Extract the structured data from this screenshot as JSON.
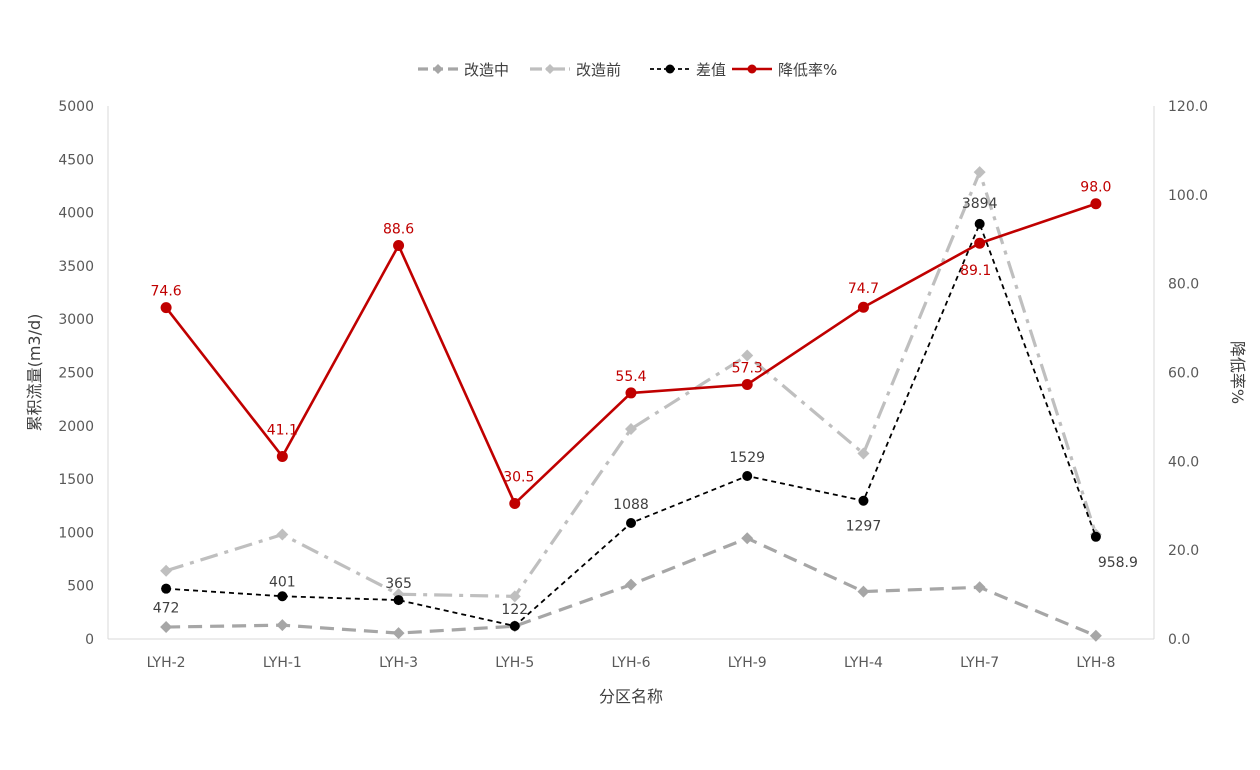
{
  "chart_data": {
    "type": "line",
    "categories": [
      "LYH-2",
      "LYH-1",
      "LYH-3",
      "LYH-5",
      "LYH-6",
      "LYH-9",
      "LYH-4",
      "LYH-7",
      "LYH-8"
    ],
    "xlabel": "分区名称",
    "ylabel": "累积流量(m3/d)",
    "y2label": "降低率%",
    "ylim": [
      0,
      5000
    ],
    "y2lim": [
      0,
      120
    ],
    "yticks": [
      "0",
      "500",
      "1000",
      "1500",
      "2000",
      "2500",
      "3000",
      "3500",
      "4000",
      "4500",
      "5000"
    ],
    "y2ticks": [
      "0.0",
      "20.0",
      "40.0",
      "60.0",
      "80.0",
      "100.0",
      "120.0"
    ],
    "grid": false,
    "legend_position": "top",
    "series": [
      {
        "name": "改造中",
        "axis": "left",
        "color": "#a6a6a6",
        "style": "dash",
        "marker": "diamond",
        "values": [
          112,
          130,
          55,
          120,
          510,
          945,
          445,
          485,
          30
        ]
      },
      {
        "name": "改造前",
        "axis": "left",
        "color": "#bfbfbf",
        "style": "dashdot",
        "marker": "diamond",
        "values": [
          640,
          980,
          420,
          400,
          1970,
          2660,
          1740,
          4380,
          980
        ]
      },
      {
        "name": "差值",
        "axis": "left",
        "color": "#000000",
        "style": "dot",
        "marker": "circle",
        "values": [
          472,
          401,
          365,
          122,
          1088,
          1529,
          1297,
          3894,
          958.9
        ],
        "labels": [
          "472",
          "401",
          "365",
          "122",
          "1088",
          "1529",
          "1297",
          "3894",
          "958.9"
        ]
      },
      {
        "name": "降低率%",
        "axis": "right",
        "color": "#c00000",
        "style": "solid",
        "marker": "circle",
        "values": [
          74.6,
          41.1,
          88.6,
          30.5,
          55.4,
          57.3,
          74.7,
          89.1,
          98.0
        ],
        "labels": [
          "74.6",
          "41.1",
          "88.6",
          "30.5",
          "55.4",
          "57.3",
          "74.7",
          "89.1",
          "98.0"
        ]
      }
    ]
  }
}
